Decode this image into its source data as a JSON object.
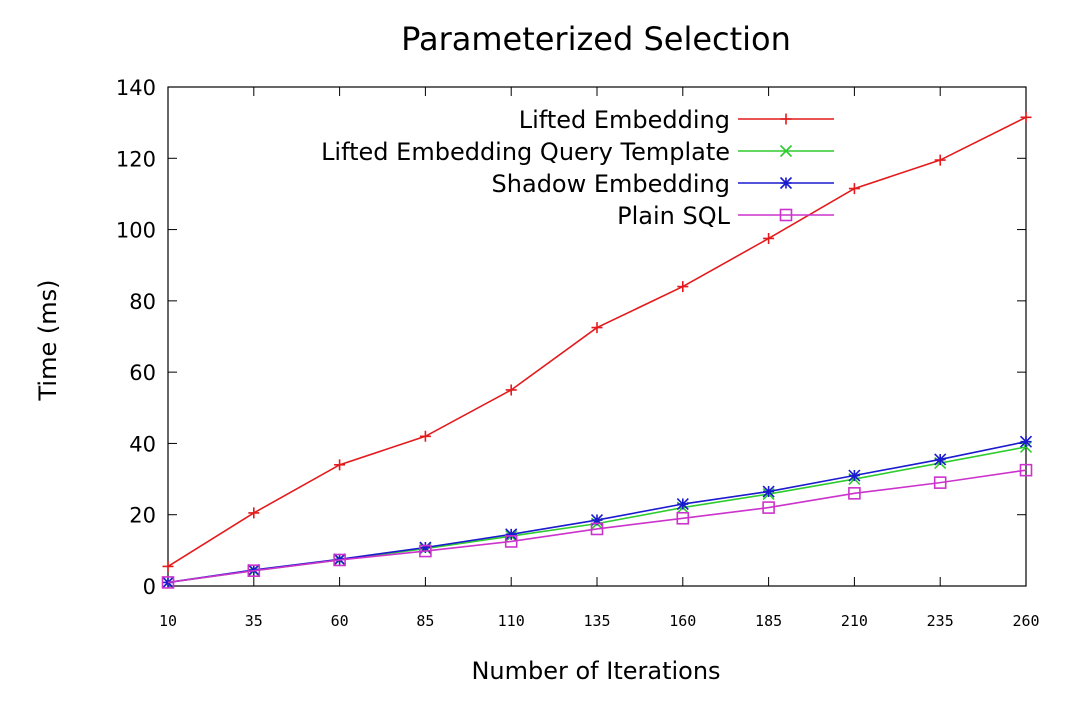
{
  "chart_data": {
    "type": "line",
    "title": "Parameterized Selection",
    "xlabel": "Number of Iterations",
    "ylabel": "Time (ms)",
    "x": [
      10,
      35,
      60,
      85,
      110,
      135,
      160,
      185,
      210,
      235,
      260
    ],
    "x_tick_labels": [
      "10",
      "35",
      "60",
      "85",
      "110",
      "135",
      "160",
      "185",
      "210",
      "235",
      "260"
    ],
    "xlim": [
      10,
      260
    ],
    "ylim": [
      0,
      140
    ],
    "y_ticks": [
      0,
      20,
      40,
      60,
      80,
      100,
      120,
      140
    ],
    "grid": false,
    "legend_position": "top-right",
    "series": [
      {
        "name": "Lifted Embedding",
        "color": "#e41a1c",
        "marker": "plus",
        "values": [
          5.5,
          20.5,
          34,
          42,
          55,
          72.5,
          84,
          97.5,
          111.5,
          119.5,
          131.5
        ]
      },
      {
        "name": "Lifted Embedding Query Template",
        "color": "#2ecc2e",
        "marker": "cross",
        "values": [
          1,
          4.3,
          7.3,
          10.5,
          14,
          17.5,
          22,
          25.8,
          30,
          34.5,
          39
        ]
      },
      {
        "name": "Shadow Embedding",
        "color": "#1a1acf",
        "marker": "star",
        "values": [
          1,
          4.5,
          7.5,
          10.8,
          14.5,
          18.5,
          23,
          26.5,
          31,
          35.5,
          40.5
        ]
      },
      {
        "name": "Plain SQL",
        "color": "#cc33cc",
        "marker": "square",
        "values": [
          1,
          4.3,
          7.3,
          9.8,
          12.5,
          16,
          19,
          22,
          26,
          29,
          32.5
        ]
      }
    ]
  }
}
